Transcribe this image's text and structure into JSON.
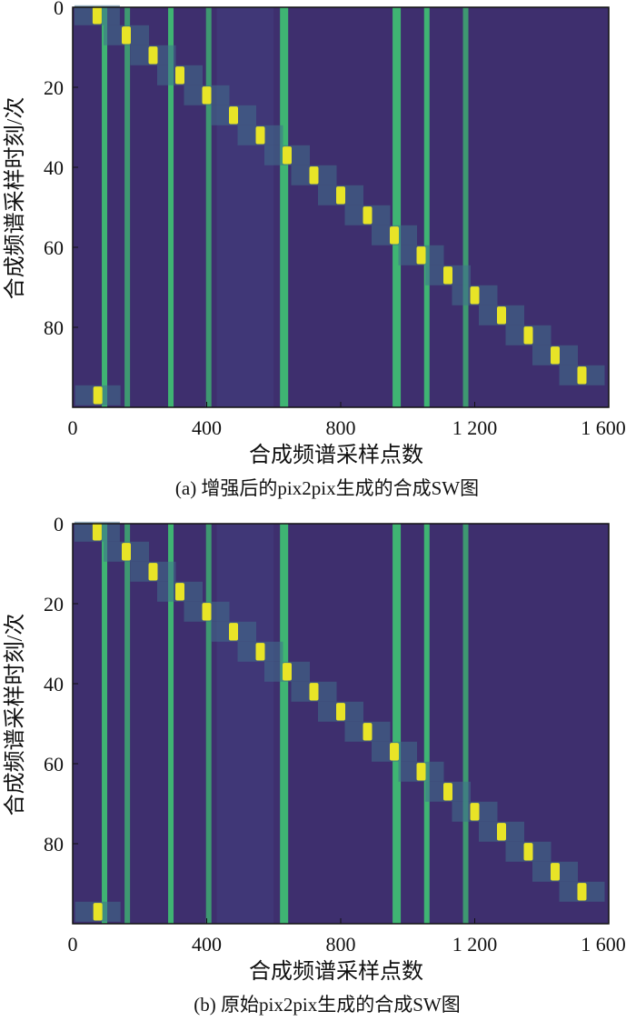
{
  "chart_data": [
    {
      "type": "heatmap",
      "caption": "(a) 增强后的pix2pix生成的合成SW图",
      "xlabel": "合成频谱采样点数",
      "ylabel": "合成频谱采样时刻/次",
      "xlim": [
        0,
        1600
      ],
      "ylim": [
        0,
        100
      ],
      "xticks": [
        "0",
        "400",
        "800",
        "1 200",
        "1 600"
      ],
      "xtick_values": [
        0,
        400,
        800,
        1200,
        1600
      ],
      "yticks": [
        "0",
        "20",
        "40",
        "60",
        "80"
      ],
      "ytick_values": [
        0,
        20,
        40,
        60,
        80
      ],
      "colormap": "viridis",
      "vertical_lines": [
        95,
        163,
        293,
        406,
        631,
        967,
        1057,
        1173
      ],
      "spots": [
        [
          75,
          97
        ],
        [
          73,
          2
        ],
        [
          160,
          7
        ],
        [
          240,
          12
        ],
        [
          320,
          17
        ],
        [
          400,
          22
        ],
        [
          480,
          27
        ],
        [
          560,
          32
        ],
        [
          640,
          37
        ],
        [
          720,
          42
        ],
        [
          800,
          47
        ],
        [
          880,
          52
        ],
        [
          960,
          57
        ],
        [
          1040,
          62
        ],
        [
          1120,
          67
        ],
        [
          1200,
          72
        ],
        [
          1280,
          77
        ],
        [
          1360,
          82
        ],
        [
          1440,
          87
        ],
        [
          1520,
          92
        ]
      ]
    },
    {
      "type": "heatmap",
      "caption": "(b) 原始pix2pix生成的合成SW图",
      "xlabel": "合成频谱采样点数",
      "ylabel": "合成频谱采样时刻/次",
      "xlim": [
        0,
        1600
      ],
      "ylim": [
        0,
        100
      ],
      "xticks": [
        "0",
        "400",
        "800",
        "1 200",
        "1 600"
      ],
      "xtick_values": [
        0,
        400,
        800,
        1200,
        1600
      ],
      "yticks": [
        "0",
        "20",
        "40",
        "60",
        "80"
      ],
      "ytick_values": [
        0,
        20,
        40,
        60,
        80
      ],
      "colormap": "viridis",
      "vertical_lines": [
        95,
        163,
        293,
        406,
        631,
        967,
        1057,
        1173
      ],
      "spots": [
        [
          75,
          97
        ],
        [
          73,
          2
        ],
        [
          160,
          7
        ],
        [
          240,
          12
        ],
        [
          320,
          17
        ],
        [
          400,
          22
        ],
        [
          480,
          27
        ],
        [
          560,
          32
        ],
        [
          640,
          37
        ],
        [
          720,
          42
        ],
        [
          800,
          47
        ],
        [
          880,
          52
        ],
        [
          960,
          57
        ],
        [
          1040,
          62
        ],
        [
          1120,
          67
        ],
        [
          1200,
          72
        ],
        [
          1280,
          77
        ],
        [
          1360,
          82
        ],
        [
          1440,
          87
        ],
        [
          1520,
          92
        ]
      ]
    }
  ],
  "colors": {
    "background": "#3e2f6e",
    "line": "#3fbc73",
    "spot": "#e8e427"
  }
}
